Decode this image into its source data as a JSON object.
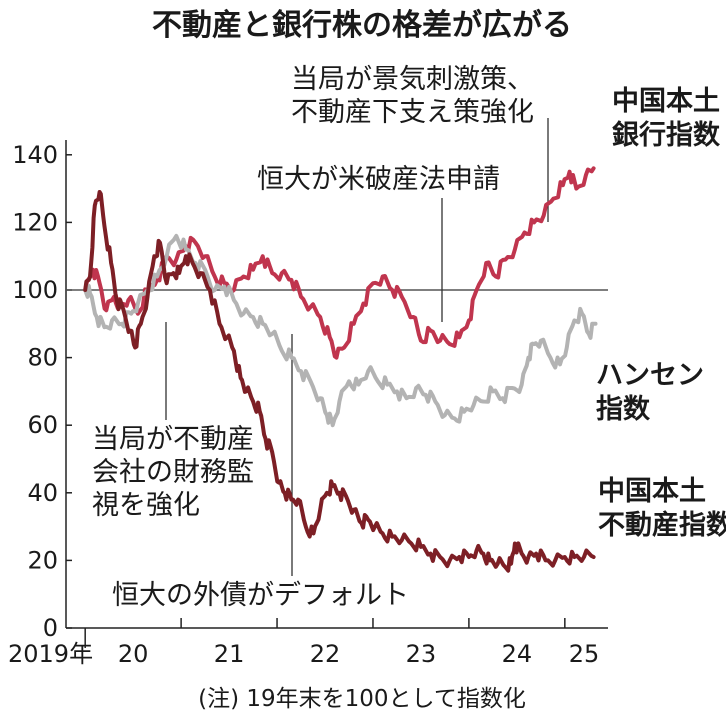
{
  "chart_data": {
    "type": "line",
    "title": "不動産と銀行株の格差が広がる",
    "note": "(注) 19年末を100として指数化",
    "y_ticks": [
      "0",
      "20",
      "40",
      "60",
      "80",
      "100",
      "120",
      "140"
    ],
    "ylim": [
      0,
      150
    ],
    "x_ticks": [
      {
        "label": "2019年",
        "x": 2019.85
      },
      {
        "label": "20",
        "x": 2020.5
      },
      {
        "label": "21",
        "x": 2021.5
      },
      {
        "label": "22",
        "x": 2022.5
      },
      {
        "label": "23",
        "x": 2023.5
      },
      {
        "label": "24",
        "x": 2024.5
      },
      {
        "label": "25",
        "x": 2025.2
      }
    ],
    "xlim": [
      2019.8,
      2025.45
    ],
    "reference_line": 100,
    "grid": false,
    "series": [
      {
        "name": "中国本土銀行指数",
        "label_lines": [
          "中国本土",
          "銀行指数"
        ],
        "color": "#c0354e",
        "points": [
          [
            2020.0,
            100
          ],
          [
            2020.08,
            106
          ],
          [
            2020.15,
            102
          ],
          [
            2020.22,
            94
          ],
          [
            2020.3,
            98
          ],
          [
            2020.38,
            95
          ],
          [
            2020.45,
            97
          ],
          [
            2020.55,
            93
          ],
          [
            2020.65,
            100
          ],
          [
            2020.75,
            103
          ],
          [
            2020.85,
            110
          ],
          [
            2020.95,
            109
          ],
          [
            2021.05,
            113
          ],
          [
            2021.15,
            114
          ],
          [
            2021.25,
            110
          ],
          [
            2021.35,
            104
          ],
          [
            2021.45,
            102
          ],
          [
            2021.55,
            100
          ],
          [
            2021.65,
            104
          ],
          [
            2021.75,
            106
          ],
          [
            2021.85,
            110
          ],
          [
            2021.95,
            105
          ],
          [
            2022.05,
            105
          ],
          [
            2022.15,
            103
          ],
          [
            2022.25,
            98
          ],
          [
            2022.35,
            95
          ],
          [
            2022.45,
            92
          ],
          [
            2022.55,
            86
          ],
          [
            2022.62,
            80
          ],
          [
            2022.7,
            83
          ],
          [
            2022.8,
            90
          ],
          [
            2022.9,
            96
          ],
          [
            2023.0,
            102
          ],
          [
            2023.1,
            104
          ],
          [
            2023.2,
            100
          ],
          [
            2023.3,
            98
          ],
          [
            2023.42,
            92
          ],
          [
            2023.5,
            85
          ],
          [
            2023.6,
            88
          ],
          [
            2023.7,
            85
          ],
          [
            2023.8,
            84
          ],
          [
            2023.9,
            86
          ],
          [
            2024.0,
            91
          ],
          [
            2024.08,
            100
          ],
          [
            2024.18,
            108
          ],
          [
            2024.28,
            104
          ],
          [
            2024.38,
            109
          ],
          [
            2024.48,
            112
          ],
          [
            2024.58,
            117
          ],
          [
            2024.68,
            120
          ],
          [
            2024.78,
            122
          ],
          [
            2024.88,
            127
          ],
          [
            2024.98,
            131
          ],
          [
            2025.05,
            135
          ],
          [
            2025.12,
            130
          ],
          [
            2025.22,
            134
          ],
          [
            2025.3,
            136
          ]
        ]
      },
      {
        "name": "ハンセン指数",
        "label_lines": [
          "ハンセン",
          "指数"
        ],
        "color": "#b3b3b3",
        "points": [
          [
            2020.0,
            100
          ],
          [
            2020.05,
            99
          ],
          [
            2020.12,
            92
          ],
          [
            2020.2,
            89
          ],
          [
            2020.28,
            91
          ],
          [
            2020.38,
            90
          ],
          [
            2020.48,
            93
          ],
          [
            2020.55,
            96
          ],
          [
            2020.65,
            100
          ],
          [
            2020.75,
            104
          ],
          [
            2020.85,
            110
          ],
          [
            2020.95,
            116
          ],
          [
            2021.05,
            112
          ],
          [
            2021.15,
            108
          ],
          [
            2021.25,
            106
          ],
          [
            2021.35,
            100
          ],
          [
            2021.45,
            101
          ],
          [
            2021.55,
            97
          ],
          [
            2021.65,
            93
          ],
          [
            2021.75,
            92
          ],
          [
            2021.85,
            90
          ],
          [
            2021.95,
            87
          ],
          [
            2022.05,
            82
          ],
          [
            2022.15,
            80
          ],
          [
            2022.25,
            76
          ],
          [
            2022.35,
            73
          ],
          [
            2022.45,
            68
          ],
          [
            2022.52,
            63
          ],
          [
            2022.58,
            60
          ],
          [
            2022.65,
            67
          ],
          [
            2022.75,
            73
          ],
          [
            2022.85,
            72
          ],
          [
            2022.95,
            76
          ],
          [
            2023.05,
            73
          ],
          [
            2023.15,
            72
          ],
          [
            2023.25,
            70
          ],
          [
            2023.35,
            68
          ],
          [
            2023.45,
            71
          ],
          [
            2023.55,
            69
          ],
          [
            2023.65,
            67
          ],
          [
            2023.75,
            63
          ],
          [
            2023.85,
            62
          ],
          [
            2023.95,
            64
          ],
          [
            2024.05,
            66
          ],
          [
            2024.15,
            67
          ],
          [
            2024.25,
            70
          ],
          [
            2024.35,
            68
          ],
          [
            2024.45,
            71
          ],
          [
            2024.55,
            72
          ],
          [
            2024.62,
            80
          ],
          [
            2024.68,
            84
          ],
          [
            2024.75,
            85
          ],
          [
            2024.85,
            80
          ],
          [
            2024.95,
            78
          ],
          [
            2025.02,
            83
          ],
          [
            2025.1,
            91
          ],
          [
            2025.18,
            93
          ],
          [
            2025.25,
            87
          ],
          [
            2025.32,
            90
          ]
        ]
      },
      {
        "name": "中国本土不動産指数",
        "label_lines": [
          "中国本土",
          "不動産指数"
        ],
        "color": "#7d1f25",
        "points": [
          [
            2020.0,
            100
          ],
          [
            2020.05,
            104
          ],
          [
            2020.1,
            125
          ],
          [
            2020.15,
            129
          ],
          [
            2020.2,
            119
          ],
          [
            2020.27,
            108
          ],
          [
            2020.33,
            97
          ],
          [
            2020.4,
            94
          ],
          [
            2020.47,
            88
          ],
          [
            2020.52,
            83
          ],
          [
            2020.58,
            90
          ],
          [
            2020.65,
            98
          ],
          [
            2020.72,
            110
          ],
          [
            2020.78,
            114
          ],
          [
            2020.85,
            102
          ],
          [
            2020.92,
            105
          ],
          [
            2020.98,
            105
          ],
          [
            2021.05,
            110
          ],
          [
            2021.12,
            108
          ],
          [
            2021.2,
            105
          ],
          [
            2021.3,
            100
          ],
          [
            2021.4,
            90
          ],
          [
            2021.48,
            86
          ],
          [
            2021.55,
            82
          ],
          [
            2021.62,
            74
          ],
          [
            2021.68,
            70
          ],
          [
            2021.75,
            67
          ],
          [
            2021.82,
            64
          ],
          [
            2021.88,
            56
          ],
          [
            2021.95,
            52
          ],
          [
            2022.02,
            43
          ],
          [
            2022.08,
            40
          ],
          [
            2022.15,
            38
          ],
          [
            2022.22,
            38
          ],
          [
            2022.3,
            30
          ],
          [
            2022.38,
            28
          ],
          [
            2022.45,
            35
          ],
          [
            2022.52,
            40
          ],
          [
            2022.58,
            42
          ],
          [
            2022.65,
            40
          ],
          [
            2022.72,
            39
          ],
          [
            2022.8,
            35
          ],
          [
            2022.88,
            31
          ],
          [
            2022.95,
            32
          ],
          [
            2023.02,
            30
          ],
          [
            2023.1,
            28
          ],
          [
            2023.2,
            27
          ],
          [
            2023.3,
            26
          ],
          [
            2023.4,
            25
          ],
          [
            2023.5,
            24
          ],
          [
            2023.6,
            22
          ],
          [
            2023.7,
            21
          ],
          [
            2023.8,
            20
          ],
          [
            2023.9,
            21
          ],
          [
            2024.0,
            21
          ],
          [
            2024.08,
            23
          ],
          [
            2024.15,
            22
          ],
          [
            2024.22,
            20
          ],
          [
            2024.3,
            19
          ],
          [
            2024.38,
            18
          ],
          [
            2024.44,
            19
          ],
          [
            2024.48,
            25
          ],
          [
            2024.55,
            22
          ],
          [
            2024.62,
            21
          ],
          [
            2024.7,
            22
          ],
          [
            2024.8,
            20
          ],
          [
            2024.9,
            20
          ],
          [
            2025.0,
            21
          ],
          [
            2025.1,
            21
          ],
          [
            2025.2,
            21
          ],
          [
            2025.3,
            21
          ]
        ]
      }
    ],
    "annotations": [
      {
        "lines": [
          "当局が景気刺激策、",
          "不動産下支え策強化"
        ],
        "x": 2024.95,
        "y": 118
      },
      {
        "lines": [
          "恒大が米破産法申請"
        ],
        "x": 2023.55,
        "y": 88
      },
      {
        "lines": [
          "当局が不動産",
          "会社の財務監",
          "視を強化"
        ],
        "x": 2020.55,
        "y": 87
      },
      {
        "lines": [
          "恒大の外債がデフォルト"
        ],
        "x": 2021.95,
        "y": 86
      }
    ]
  }
}
